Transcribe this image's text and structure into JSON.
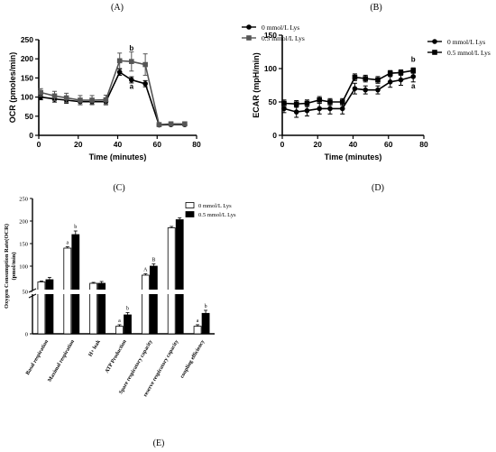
{
  "panel_labels": {
    "A": "(A)",
    "B": "(B)",
    "C": "(C)",
    "D": "(D)",
    "E": "(E)"
  },
  "chart_data": [
    {
      "panel": "A",
      "type": "line",
      "ylabel": "OCR (pmoles/min)",
      "xlabel": "Time (minutes)",
      "xlim": [
        0,
        80
      ],
      "ylim": [
        0,
        250
      ],
      "xticks": [
        0,
        20,
        40,
        60,
        80
      ],
      "yticks": [
        0,
        50,
        100,
        150,
        200,
        250
      ],
      "grid": false,
      "legend_position": "top-right",
      "series": [
        {
          "name": "0  mmol/L Lys",
          "marker": "circle",
          "color": "#000000",
          "x": [
            1,
            8,
            14,
            21,
            27,
            34,
            41,
            47,
            54,
            61,
            67,
            74
          ],
          "y": [
            100,
            95,
            92,
            88,
            88,
            88,
            165,
            145,
            135,
            27,
            28,
            28
          ],
          "err": [
            7,
            8,
            8,
            8,
            7,
            8,
            8,
            8,
            8,
            3,
            3,
            3
          ]
        },
        {
          "name": "0.5  mmol/L Lys",
          "marker": "square",
          "color": "#555555",
          "x": [
            1,
            8,
            14,
            21,
            27,
            34,
            41,
            47,
            54,
            61,
            67,
            74
          ],
          "y": [
            112,
            103,
            98,
            92,
            92,
            93,
            195,
            193,
            185,
            28,
            30,
            30
          ],
          "err": [
            10,
            12,
            12,
            12,
            12,
            12,
            20,
            25,
            28,
            4,
            4,
            4
          ]
        }
      ],
      "annotations": [
        {
          "text": "b",
          "x": 47,
          "y": 222
        },
        {
          "text": "a",
          "x": 47,
          "y": 122
        }
      ]
    },
    {
      "panel": "B",
      "type": "line",
      "ylabel": "ECAR (mpH/min)",
      "xlabel": "Time (minutes)",
      "xlim": [
        0,
        80
      ],
      "ylim": [
        0,
        150
      ],
      "xticks": [
        0,
        20,
        40,
        60,
        80
      ],
      "yticks": [
        0,
        50,
        100,
        150
      ],
      "grid": false,
      "legend_position": "top-right",
      "series": [
        {
          "name": "0  mmol/L Lys",
          "marker": "circle",
          "color": "#000000",
          "x": [
            1,
            8,
            14,
            21,
            27,
            34,
            41,
            47,
            54,
            61,
            67,
            74
          ],
          "y": [
            40,
            35,
            37,
            40,
            40,
            40,
            70,
            68,
            68,
            80,
            83,
            88
          ],
          "err": [
            6,
            8,
            8,
            8,
            8,
            8,
            8,
            6,
            6,
            8,
            8,
            8
          ]
        },
        {
          "name": "0.5  mmol/L Lys",
          "marker": "square",
          "color": "#000000",
          "x": [
            1,
            8,
            14,
            21,
            27,
            34,
            41,
            47,
            54,
            61,
            67,
            74
          ],
          "y": [
            48,
            47,
            48,
            53,
            50,
            50,
            87,
            85,
            83,
            93,
            94,
            97
          ],
          "err": [
            5,
            5,
            5,
            5,
            5,
            5,
            5,
            5,
            5,
            4,
            4,
            4
          ]
        }
      ],
      "annotations": [
        {
          "text": "b",
          "x": 74,
          "y": 110
        },
        {
          "text": "a",
          "x": 74,
          "y": 70
        }
      ]
    },
    {
      "panel": "E",
      "type": "bar",
      "ylabel": "Oxygen Consumption Rate(OCR)\n(pmol/min)",
      "ylim": [
        0,
        250
      ],
      "axis_break": [
        50,
        50
      ],
      "yticks": [
        0,
        50,
        100,
        150,
        200,
        250
      ],
      "grid": false,
      "legend_position": "top-right",
      "categories": [
        "Basal respiration",
        "Maximal respiration",
        "H+ leak",
        "ATP Production",
        "Spare respiratory capacity",
        "reserve respiratory capacity",
        "coupling efficiency"
      ],
      "series": [
        {
          "name": "0  mmol/L Lys",
          "color": "#ffffff",
          "values": [
            65,
            140,
            62,
            10,
            80,
            185,
            10
          ],
          "err": [
            2,
            3,
            2,
            2,
            3,
            3,
            2
          ]
        },
        {
          "name": "0.5  mmol/L Lys",
          "color": "#000000",
          "values": [
            70,
            170,
            62,
            25,
            100,
            203,
            27
          ],
          "err": [
            5,
            8,
            4,
            3,
            5,
            4,
            4
          ]
        }
      ],
      "bar_labels": [
        [
          "",
          "a",
          "",
          "a",
          "A",
          "",
          "a"
        ],
        [
          "",
          "b",
          "",
          "b",
          "B",
          "",
          "b"
        ]
      ]
    }
  ]
}
